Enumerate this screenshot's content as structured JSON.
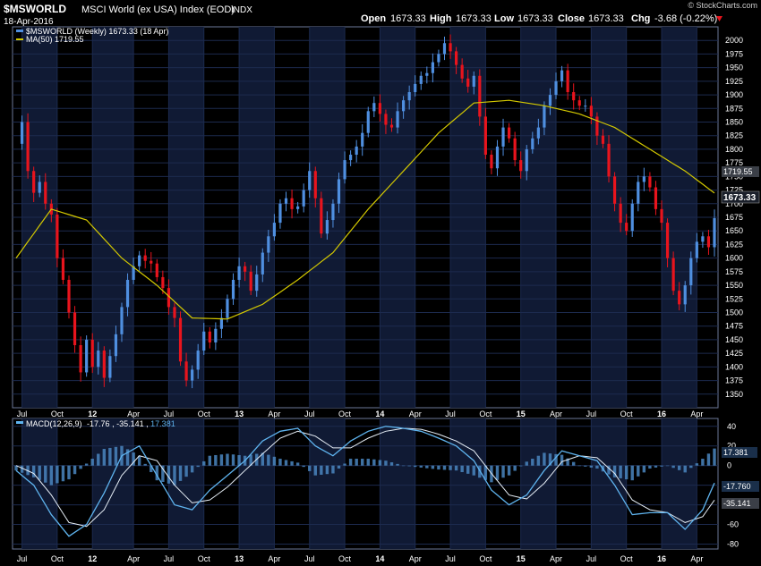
{
  "header": {
    "symbol": "$MSWORLD",
    "name": "MSCI World (ex USA) Index (EOD)",
    "exchange": "INDX",
    "date": "18-Apr-2016",
    "brand": "© StockCharts.com",
    "open_label": "Open",
    "open": "1673.33",
    "high_label": "High",
    "high": "1673.33",
    "low_label": "Low",
    "low": "1673.33",
    "close_label": "Close",
    "close": "1673.33",
    "chg_label": "Chg",
    "chg": "-3.68 (-0.22%)"
  },
  "legend": {
    "price_series": "$MSWORLD (Weekly) 1673.33 (18 Apr)",
    "ma_series": "MA(50) 1719.55",
    "macd_series": "MACD(12,26,9)",
    "macd_values": [
      -17.76,
      -35.141,
      17.381
    ]
  },
  "badges": {
    "price": "1673.33",
    "ma": "1719.55",
    "macd_hist": "17.381",
    "macd_line": "-17.760",
    "macd_signal": "-35.141"
  },
  "colors": {
    "up": "#4f8fe0",
    "down": "#e8141d",
    "ma": "#d4c900",
    "macd": "#5fb4ef",
    "signal": "#e6eef6",
    "hist": "#4a86c0",
    "grid": "#1c2a4e",
    "band": "#101a34"
  },
  "chart_data": [
    {
      "type": "candlestick",
      "title": "$MSWORLD",
      "ylim": [
        1325,
        2025
      ],
      "y_ticks": [
        1350,
        1375,
        1400,
        1425,
        1450,
        1475,
        1500,
        1525,
        1550,
        1575,
        1600,
        1625,
        1650,
        1675,
        1700,
        1725,
        1750,
        1775,
        1800,
        1825,
        1850,
        1875,
        1900,
        1925,
        1950,
        1975,
        2000
      ],
      "x_ticks": [
        "Jul",
        "Oct",
        "12",
        "Apr",
        "Jul",
        "Oct",
        "13",
        "Apr",
        "Jul",
        "Oct",
        "14",
        "Apr",
        "Jul",
        "Oct",
        "15",
        "Apr",
        "Jul",
        "Oct",
        "16",
        "Apr"
      ],
      "close_series": [
        [
          0,
          1810
        ],
        [
          1,
          1850
        ],
        [
          2,
          1760
        ],
        [
          3,
          1720
        ],
        [
          4,
          1740
        ],
        [
          5,
          1700
        ],
        [
          6,
          1680
        ],
        [
          7,
          1600
        ],
        [
          8,
          1560
        ],
        [
          9,
          1500
        ],
        [
          10,
          1440
        ],
        [
          11,
          1390
        ],
        [
          12,
          1450
        ],
        [
          13,
          1400
        ],
        [
          14,
          1430
        ],
        [
          15,
          1380
        ],
        [
          16,
          1420
        ],
        [
          17,
          1460
        ],
        [
          18,
          1510
        ],
        [
          19,
          1560
        ],
        [
          20,
          1585
        ],
        [
          21,
          1605
        ],
        [
          22,
          1595
        ],
        [
          23,
          1590
        ],
        [
          24,
          1565
        ],
        [
          25,
          1545
        ],
        [
          26,
          1510
        ],
        [
          27,
          1490
        ],
        [
          28,
          1410
        ],
        [
          29,
          1375
        ],
        [
          30,
          1395
        ],
        [
          31,
          1430
        ],
        [
          32,
          1465
        ],
        [
          33,
          1445
        ],
        [
          34,
          1470
        ],
        [
          35,
          1490
        ],
        [
          36,
          1525
        ],
        [
          37,
          1560
        ],
        [
          38,
          1585
        ],
        [
          39,
          1575
        ],
        [
          40,
          1540
        ],
        [
          41,
          1570
        ],
        [
          42,
          1610
        ],
        [
          43,
          1640
        ],
        [
          44,
          1665
        ],
        [
          45,
          1700
        ],
        [
          46,
          1710
        ],
        [
          47,
          1690
        ],
        [
          48,
          1695
        ],
        [
          49,
          1725
        ],
        [
          50,
          1760
        ],
        [
          51,
          1710
        ],
        [
          52,
          1645
        ],
        [
          53,
          1670
        ],
        [
          54,
          1700
        ],
        [
          55,
          1745
        ],
        [
          56,
          1780
        ],
        [
          57,
          1790
        ],
        [
          58,
          1805
        ],
        [
          59,
          1830
        ],
        [
          60,
          1870
        ],
        [
          61,
          1885
        ],
        [
          62,
          1865
        ],
        [
          63,
          1845
        ],
        [
          64,
          1840
        ],
        [
          65,
          1870
        ],
        [
          66,
          1890
        ],
        [
          67,
          1905
        ],
        [
          68,
          1920
        ],
        [
          69,
          1935
        ],
        [
          70,
          1940
        ],
        [
          71,
          1960
        ],
        [
          72,
          1975
        ],
        [
          73,
          1995
        ],
        [
          74,
          1980
        ],
        [
          75,
          1955
        ],
        [
          76,
          1930
        ],
        [
          77,
          1915
        ],
        [
          78,
          1935
        ],
        [
          79,
          1860
        ],
        [
          80,
          1790
        ],
        [
          81,
          1765
        ],
        [
          82,
          1805
        ],
        [
          83,
          1840
        ],
        [
          84,
          1820
        ],
        [
          85,
          1780
        ],
        [
          86,
          1760
        ],
        [
          87,
          1800
        ],
        [
          88,
          1820
        ],
        [
          89,
          1840
        ],
        [
          90,
          1880
        ],
        [
          91,
          1900
        ],
        [
          92,
          1925
        ],
        [
          93,
          1945
        ],
        [
          94,
          1905
        ],
        [
          95,
          1890
        ],
        [
          96,
          1880
        ],
        [
          97,
          1880
        ],
        [
          98,
          1860
        ],
        [
          99,
          1825
        ],
        [
          100,
          1810
        ],
        [
          101,
          1750
        ],
        [
          102,
          1700
        ],
        [
          103,
          1665
        ],
        [
          104,
          1650
        ],
        [
          105,
          1700
        ],
        [
          106,
          1740
        ],
        [
          107,
          1750
        ],
        [
          108,
          1730
        ],
        [
          109,
          1690
        ],
        [
          110,
          1665
        ],
        [
          111,
          1600
        ],
        [
          112,
          1540
        ],
        [
          113,
          1515
        ],
        [
          114,
          1550
        ],
        [
          115,
          1600
        ],
        [
          116,
          1630
        ],
        [
          117,
          1640
        ],
        [
          118,
          1620
        ],
        [
          119,
          1673.33
        ]
      ],
      "ma_series": [
        [
          0,
          1600
        ],
        [
          6,
          1690
        ],
        [
          12,
          1670
        ],
        [
          18,
          1600
        ],
        [
          24,
          1550
        ],
        [
          30,
          1490
        ],
        [
          36,
          1488
        ],
        [
          42,
          1515
        ],
        [
          48,
          1560
        ],
        [
          54,
          1610
        ],
        [
          60,
          1690
        ],
        [
          66,
          1760
        ],
        [
          72,
          1830
        ],
        [
          78,
          1885
        ],
        [
          84,
          1890
        ],
        [
          90,
          1880
        ],
        [
          96,
          1865
        ],
        [
          102,
          1840
        ],
        [
          108,
          1800
        ],
        [
          114,
          1760
        ],
        [
          119,
          1719.55
        ]
      ]
    },
    {
      "type": "macd",
      "title": "MACD(12,26,9)",
      "ylim": [
        -85,
        48
      ],
      "y_ticks": [
        -80,
        -60,
        -40,
        -20,
        0,
        20,
        40
      ],
      "x_ticks": [
        "Jul",
        "Oct",
        "12",
        "Apr",
        "Jul",
        "Oct",
        "13",
        "Apr",
        "Jul",
        "Oct",
        "14",
        "Apr",
        "Jul",
        "Oct",
        "15",
        "Apr",
        "Jul",
        "Oct",
        "16",
        "Apr"
      ],
      "macd_series": [
        [
          0,
          -5
        ],
        [
          3,
          -20
        ],
        [
          6,
          -50
        ],
        [
          9,
          -72
        ],
        [
          12,
          -60
        ],
        [
          15,
          -28
        ],
        [
          18,
          10
        ],
        [
          21,
          20
        ],
        [
          24,
          -10
        ],
        [
          27,
          -40
        ],
        [
          30,
          -45
        ],
        [
          33,
          -25
        ],
        [
          36,
          -10
        ],
        [
          39,
          5
        ],
        [
          42,
          25
        ],
        [
          45,
          35
        ],
        [
          48,
          38
        ],
        [
          51,
          20
        ],
        [
          54,
          10
        ],
        [
          57,
          25
        ],
        [
          60,
          35
        ],
        [
          63,
          40
        ],
        [
          66,
          38
        ],
        [
          69,
          35
        ],
        [
          72,
          28
        ],
        [
          75,
          20
        ],
        [
          78,
          5
        ],
        [
          81,
          -25
        ],
        [
          84,
          -40
        ],
        [
          87,
          -30
        ],
        [
          90,
          -5
        ],
        [
          93,
          15
        ],
        [
          96,
          10
        ],
        [
          99,
          5
        ],
        [
          102,
          -20
        ],
        [
          105,
          -50
        ],
        [
          108,
          -48
        ],
        [
          111,
          -48
        ],
        [
          114,
          -65
        ],
        [
          117,
          -45
        ],
        [
          119,
          -17.76
        ]
      ],
      "signal_series": [
        [
          0,
          0
        ],
        [
          3,
          -8
        ],
        [
          6,
          -30
        ],
        [
          9,
          -58
        ],
        [
          12,
          -62
        ],
        [
          15,
          -45
        ],
        [
          18,
          -10
        ],
        [
          21,
          10
        ],
        [
          24,
          5
        ],
        [
          27,
          -20
        ],
        [
          30,
          -38
        ],
        [
          33,
          -35
        ],
        [
          36,
          -22
        ],
        [
          39,
          -5
        ],
        [
          42,
          12
        ],
        [
          45,
          28
        ],
        [
          48,
          35
        ],
        [
          51,
          30
        ],
        [
          54,
          18
        ],
        [
          57,
          18
        ],
        [
          60,
          28
        ],
        [
          63,
          35
        ],
        [
          66,
          38
        ],
        [
          69,
          37
        ],
        [
          72,
          32
        ],
        [
          75,
          25
        ],
        [
          78,
          15
        ],
        [
          81,
          -8
        ],
        [
          84,
          -30
        ],
        [
          87,
          -34
        ],
        [
          90,
          -18
        ],
        [
          93,
          4
        ],
        [
          96,
          10
        ],
        [
          99,
          8
        ],
        [
          102,
          -8
        ],
        [
          105,
          -35
        ],
        [
          108,
          -45
        ],
        [
          111,
          -48
        ],
        [
          114,
          -58
        ],
        [
          117,
          -52
        ],
        [
          119,
          -35.141
        ]
      ],
      "histogram_last": 17.381
    }
  ]
}
